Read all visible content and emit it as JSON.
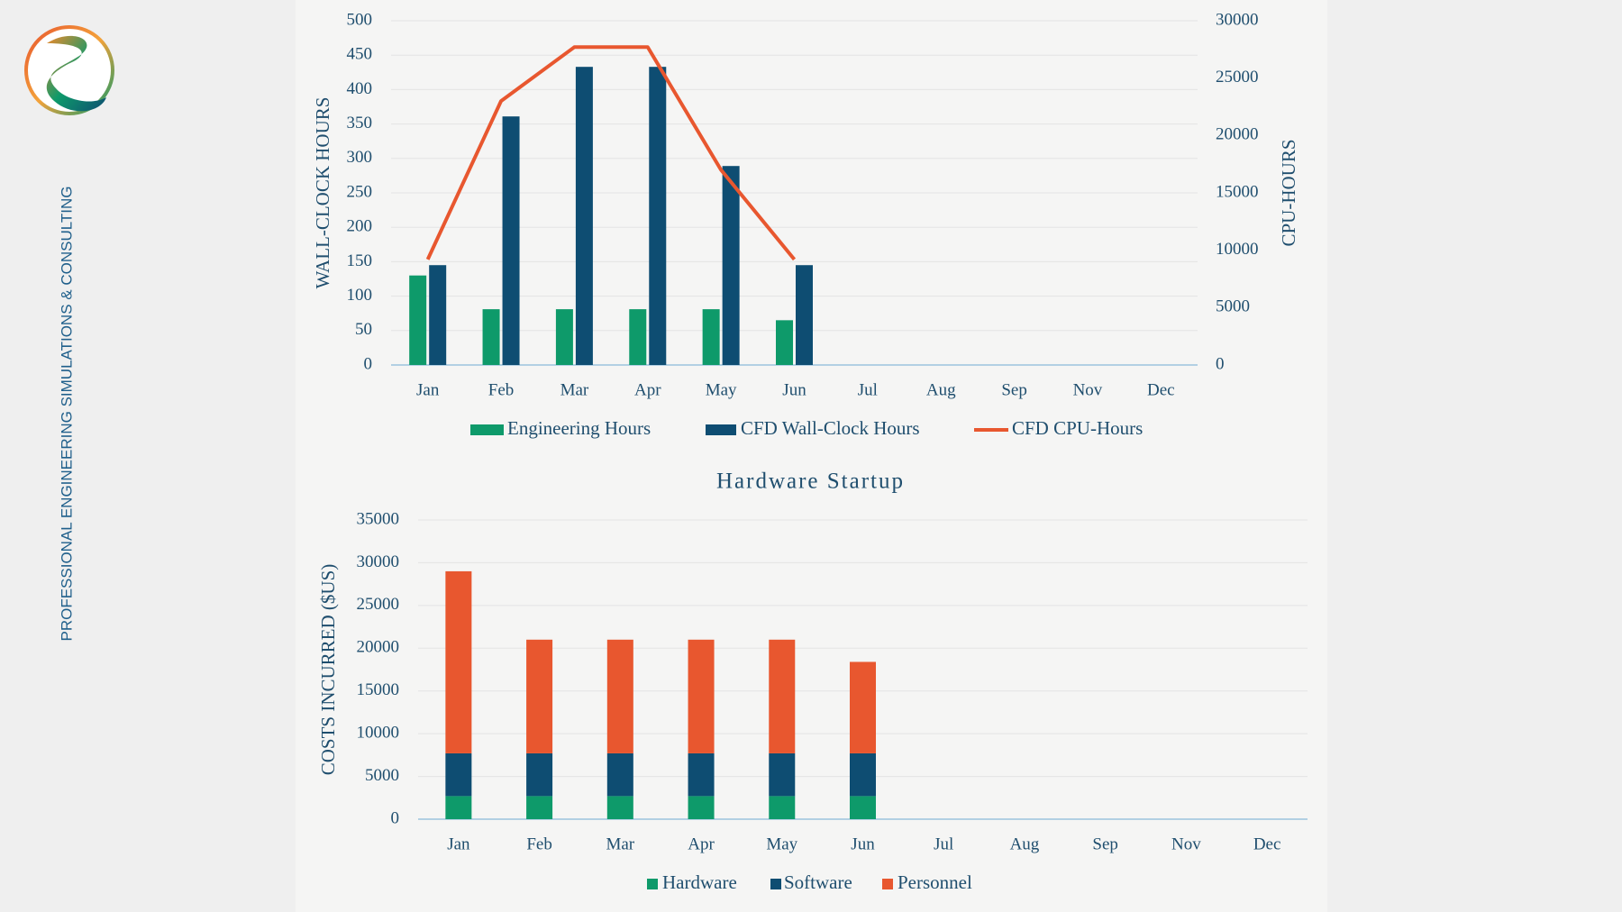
{
  "sidebar": {
    "tagline": "PROFESSIONAL ENGINEERING SIMULATIONS & CONSULTING"
  },
  "chart_data": [
    {
      "type": "combo",
      "categories": [
        "Jan",
        "Feb",
        "Mar",
        "Apr",
        "May",
        "Jun",
        "Jul",
        "Aug",
        "Sep",
        "Nov",
        "Dec"
      ],
      "y_label": "WALL-CLOCK HOURS",
      "y2_label": "CPU-HOURS",
      "ylim": [
        0,
        500
      ],
      "yticks": [
        0,
        50,
        100,
        150,
        200,
        250,
        300,
        350,
        400,
        450,
        500
      ],
      "y2lim": [
        0,
        30000
      ],
      "y2ticks": [
        0,
        5000,
        10000,
        15000,
        20000,
        25000,
        30000
      ],
      "grid": true,
      "legend": "bottom",
      "series": [
        {
          "name": "Engineering Hours",
          "type": "bar",
          "color": "#0e9a6a",
          "values": [
            130,
            81,
            81,
            81,
            81,
            65,
            null,
            null,
            null,
            null,
            null
          ]
        },
        {
          "name": "CFD Wall-Clock Hours",
          "type": "bar",
          "color": "#0e4d72",
          "values": [
            145,
            361,
            433,
            433,
            289,
            145,
            null,
            null,
            null,
            null,
            null
          ]
        },
        {
          "name": "CFD CPU-Hours",
          "type": "line",
          "axis": "y2",
          "color": "#e8572f",
          "values": [
            9200,
            23000,
            27700,
            27700,
            17000,
            9200,
            null,
            null,
            null,
            null,
            null
          ]
        }
      ]
    },
    {
      "type": "stacked_bar",
      "title": "Hardware Startup",
      "categories": [
        "Jan",
        "Feb",
        "Mar",
        "Apr",
        "May",
        "Jun",
        "Jul",
        "Aug",
        "Sep",
        "Nov",
        "Dec"
      ],
      "y_label": "COSTS INCURRED ($US)",
      "ylim": [
        0,
        35000
      ],
      "yticks": [
        0,
        5000,
        10000,
        15000,
        20000,
        25000,
        30000,
        35000
      ],
      "grid": true,
      "legend": "bottom",
      "series": [
        {
          "name": "Hardware",
          "color": "#0e9a6a",
          "values": [
            2700,
            2700,
            2700,
            2700,
            2700,
            2700,
            null,
            null,
            null,
            null,
            null
          ]
        },
        {
          "name": "Software",
          "color": "#0e4d72",
          "values": [
            5000,
            5000,
            5000,
            5000,
            5000,
            5000,
            null,
            null,
            null,
            null,
            null
          ]
        },
        {
          "name": "Personnel",
          "color": "#e8572f",
          "values": [
            21300,
            13300,
            13300,
            13300,
            13300,
            10700,
            null,
            null,
            null,
            null,
            null
          ]
        }
      ]
    }
  ]
}
